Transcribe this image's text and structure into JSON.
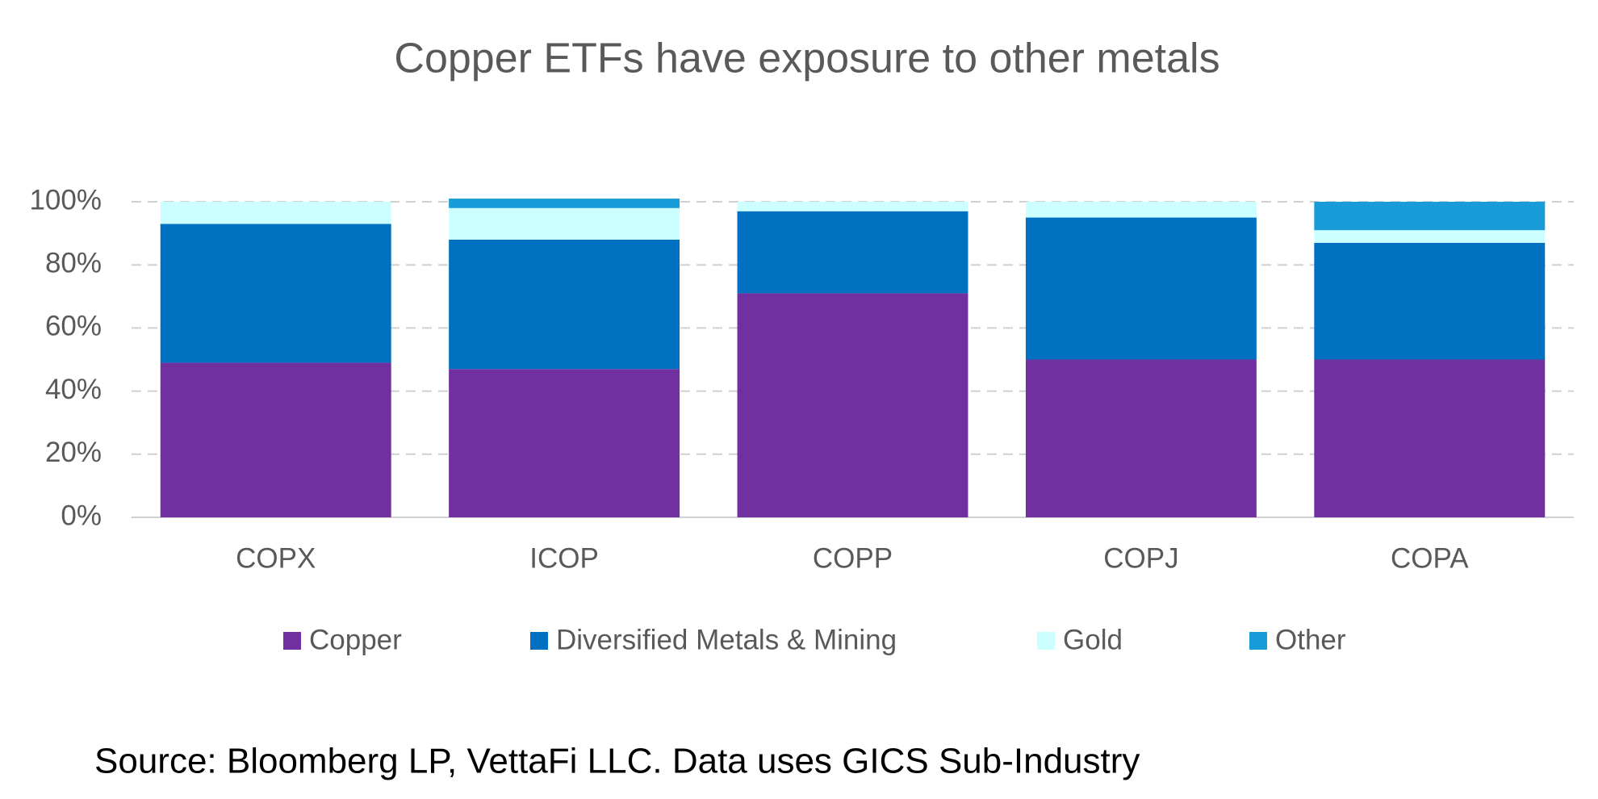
{
  "chart_data": {
    "type": "stacked_bar",
    "title": "Copper ETFs have exposure to other metals",
    "source": "Source: Bloomberg LP, VettaFi LLC. Data uses GICS Sub-Industry",
    "categories": [
      "COPX",
      "ICOP",
      "COPP",
      "COPJ",
      "COPA"
    ],
    "series": [
      {
        "name": "Copper",
        "color": "#7030a0",
        "values": [
          49,
          47,
          71,
          50,
          50
        ]
      },
      {
        "name": "Diversified Metals & Mining",
        "color": "#0070c0",
        "values": [
          44,
          41,
          26,
          45,
          37
        ]
      },
      {
        "name": "Gold",
        "color": "#ccffff",
        "values": [
          7,
          10,
          3,
          5,
          4
        ]
      },
      {
        "name": "Other",
        "color": "#179cd7",
        "values": [
          0,
          3,
          0,
          0,
          9
        ]
      }
    ],
    "ylim": [
      0,
      100
    ],
    "yticks": [
      {
        "value": 0,
        "label": "0%"
      },
      {
        "value": 20,
        "label": "20%"
      },
      {
        "value": 40,
        "label": "40%"
      },
      {
        "value": 60,
        "label": "60%"
      },
      {
        "value": 80,
        "label": "80%"
      },
      {
        "value": 100,
        "label": "100%"
      }
    ],
    "grid": true,
    "legend": "bottom"
  }
}
